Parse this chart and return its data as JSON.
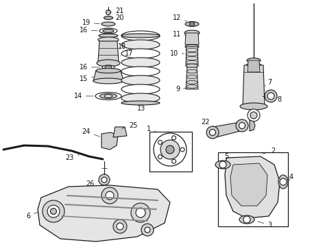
{
  "bg_color": "#ffffff",
  "line_color": "#1a1a1a",
  "label_color": "#111111",
  "label_fontsize": 7.0,
  "figsize": [
    4.9,
    3.6
  ],
  "dpi": 100
}
